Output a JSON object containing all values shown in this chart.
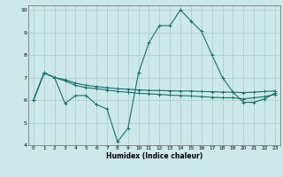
{
  "title": "",
  "xlabel": "Humidex (Indice chaleur)",
  "ylabel": "",
  "bg_color": "#cce8e8",
  "grid_color": "#aacccc",
  "line_color": "#1a7070",
  "xlim": [
    -0.5,
    23.5
  ],
  "ylim": [
    4,
    10.2
  ],
  "yticks": [
    4,
    5,
    6,
    7,
    8,
    9,
    10
  ],
  "xticks": [
    0,
    1,
    2,
    3,
    4,
    5,
    6,
    7,
    8,
    9,
    10,
    11,
    12,
    13,
    14,
    15,
    16,
    17,
    18,
    19,
    20,
    21,
    22,
    23
  ],
  "line1_x": [
    0,
    1,
    2,
    3,
    4,
    5,
    6,
    7,
    8,
    9,
    10,
    11,
    12,
    13,
    14,
    15,
    16,
    17,
    18,
    19,
    20,
    21,
    22,
    23
  ],
  "line1_y": [
    6.0,
    7.2,
    7.0,
    5.85,
    6.2,
    6.2,
    5.8,
    5.6,
    4.15,
    4.75,
    7.2,
    8.55,
    9.3,
    9.3,
    10.0,
    9.5,
    9.05,
    8.0,
    7.0,
    6.35,
    5.9,
    5.9,
    6.05,
    6.3
  ],
  "line2_x": [
    0,
    1,
    2,
    3,
    4,
    5,
    6,
    7,
    8,
    9,
    10,
    11,
    12,
    13,
    14,
    15,
    16,
    17,
    18,
    19,
    20,
    21,
    22,
    23
  ],
  "line2_y": [
    6.0,
    7.2,
    7.0,
    6.85,
    6.65,
    6.55,
    6.5,
    6.45,
    6.38,
    6.35,
    6.3,
    6.28,
    6.25,
    6.22,
    6.2,
    6.18,
    6.15,
    6.12,
    6.1,
    6.1,
    6.05,
    6.1,
    6.15,
    6.25
  ],
  "line3_x": [
    0,
    1,
    2,
    3,
    4,
    5,
    6,
    7,
    8,
    9,
    10,
    11,
    12,
    13,
    14,
    15,
    16,
    17,
    18,
    19,
    20,
    21,
    22,
    23
  ],
  "line3_y": [
    6.0,
    7.2,
    7.0,
    6.9,
    6.75,
    6.65,
    6.6,
    6.55,
    6.5,
    6.48,
    6.45,
    6.43,
    6.42,
    6.41,
    6.4,
    6.4,
    6.38,
    6.37,
    6.35,
    6.35,
    6.33,
    6.35,
    6.38,
    6.4
  ]
}
